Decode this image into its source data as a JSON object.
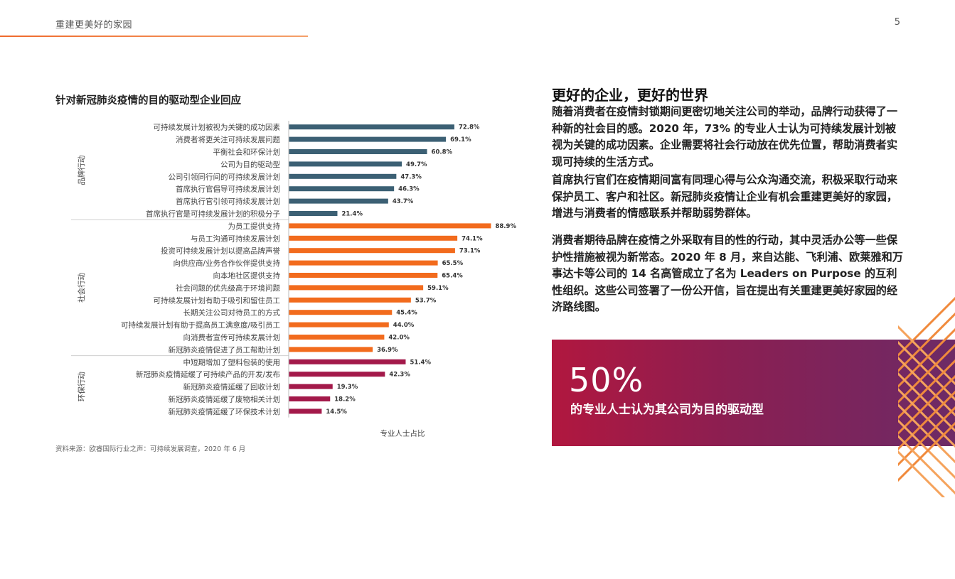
{
  "header": {
    "title": "重建更美好的家园",
    "page_number": "5"
  },
  "chart_title": "针对新冠肺炎疫情的目的驱动型企业回应",
  "source": "资料来源：欧睿国际行业之声：可持续发展调查，2020 年 6 月",
  "side": {
    "title": "更好的企业，更好的世界",
    "paragraphs": [
      "随着消费者在疫情封锁期间更密切地关注公司的举动，品牌行动获得了一种新的社会目的感。2020 年，73% 的专业人士认为可持续发展计划被视为关键的成功因素。企业需要将社会行动放在优先位置，帮助消费者实现可持续的生活方式。",
      "首席执行官们在疫情期间富有同理心得与公众沟通交流，积极采取行动来保护员工、客户和社区。新冠肺炎疫情让企业有机会重建更美好的家园，增进与消费者的情感联系并帮助弱势群体。",
      "消费者期待品牌在疫情之外采取有目的性的行动，其中灵活办公等一些保护性措施被视为新常态。2020 年 8 月，来自达能、飞利浦、欧莱雅和万事达卡等公司的 14 名高管成立了名为 Leaders on Purpose 的互利性组织。这些公司签署了一份公开信，旨在提出有关重建更美好家园的经济路线图。"
    ]
  },
  "callout": {
    "value": "50%",
    "text": "的专业人士认为其公司为目的驱动型"
  },
  "chart_data": {
    "type": "bar",
    "orientation": "horizontal",
    "xlabel": "专业人士占比",
    "xlim": [
      0,
      100
    ],
    "value_suffix": "%",
    "groups": [
      {
        "name": "品牌行动",
        "color": "#3c6074",
        "categories": [
          "可持续发展计划被视为关键的成功因素",
          "消费者将更关注可持续发展问题",
          "平衡社会和环保计划",
          "公司为目的驱动型",
          "公司引领同行间的可持续发展计划",
          "首席执行官倡导可持续发展计划",
          "首席执行官引领可持续发展计划",
          "首席执行官是可持续发展计划的积极分子"
        ],
        "values": [
          72.8,
          69.1,
          60.8,
          49.7,
          47.3,
          46.3,
          43.7,
          21.4
        ]
      },
      {
        "name": "社会行动",
        "color": "#f26b1d",
        "categories": [
          "为员工提供支持",
          "与员工沟通可持续发展计划",
          "投资可持续发展计划以提高品牌声誉",
          "向供应商/业务合作伙伴提供支持",
          "向本地社区提供支持",
          "社会问题的优先级高于环境问题",
          "可持续发展计划有助于吸引和留住员工",
          "长期关注公司对待员工的方式",
          "可持续发展计划有助于提高员工满意度/吸引员工",
          "向消费者宣传可持续发展计划",
          "新冠肺炎疫情促进了员工帮助计划"
        ],
        "values": [
          88.9,
          74.1,
          73.1,
          65.5,
          65.4,
          59.1,
          53.7,
          45.4,
          44.0,
          42.0,
          36.9
        ]
      },
      {
        "name": "环保行动",
        "color": "#a3194a",
        "categories": [
          "中短期增加了塑料包装的使用",
          "新冠肺炎疫情延缓了可持续产品的开发/发布",
          "新冠肺炎疫情延缓了回收计划",
          "新冠肺炎疫情延缓了废物相关计划",
          "新冠肺炎疫情延缓了环保技术计划"
        ],
        "values": [
          51.4,
          42.3,
          19.3,
          18.2,
          14.5
        ]
      }
    ]
  }
}
